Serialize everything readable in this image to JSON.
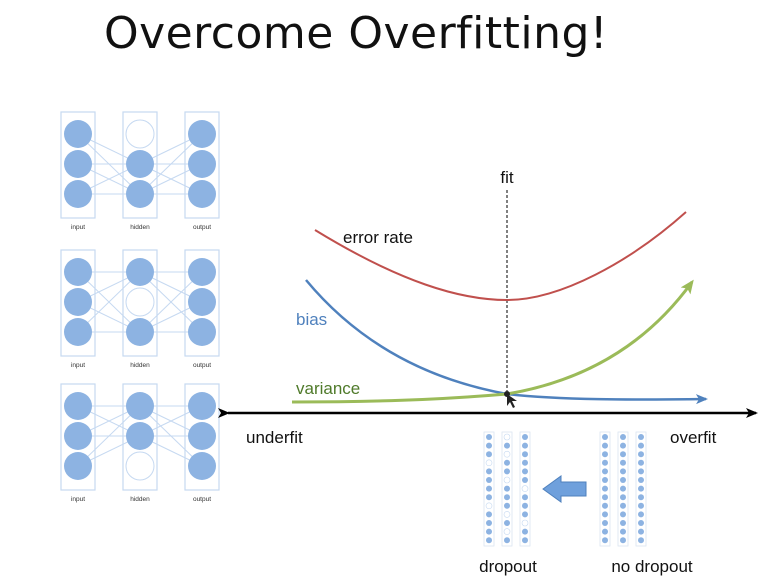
{
  "slide": {
    "title": "Overcome Overfitting!"
  },
  "networks": [
    {
      "layer_labels": [
        "input",
        "hidden",
        "output"
      ],
      "active": [
        [
          1,
          1,
          1
        ],
        [
          0,
          1,
          1
        ],
        [
          1,
          1,
          1
        ]
      ]
    },
    {
      "layer_labels": [
        "input",
        "hidden",
        "output"
      ],
      "active": [
        [
          1,
          1,
          1
        ],
        [
          1,
          0,
          1
        ],
        [
          1,
          1,
          1
        ]
      ]
    },
    {
      "layer_labels": [
        "input",
        "hidden",
        "output"
      ],
      "active": [
        [
          1,
          1,
          1
        ],
        [
          1,
          1,
          0
        ],
        [
          1,
          1,
          1
        ]
      ]
    }
  ],
  "tradeoff": {
    "fit_label": "fit",
    "underfit_label": "underfit",
    "overfit_label": "overfit",
    "error_rate_label": "error rate",
    "bias_label": "bias",
    "variance_label": "variance"
  },
  "dropout": {
    "dropout_label": "dropout",
    "no_dropout_label": "no dropout"
  },
  "colors": {
    "error_rate": "#c0504d",
    "bias": "#4f81bd",
    "variance": "#9bbb59",
    "node": "#8db3e2",
    "layer_box": "#c6d9f1",
    "arrow_fill": "#6fa0dc"
  }
}
